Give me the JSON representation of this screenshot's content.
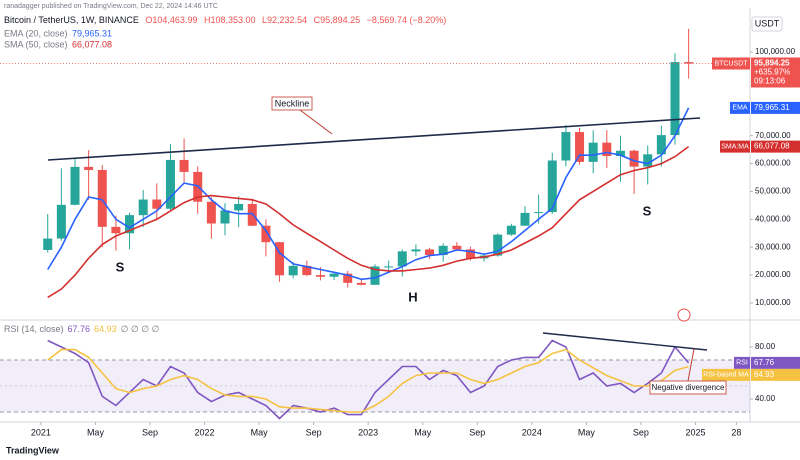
{
  "header": {
    "author_line": "ranadagger published on TradingView.com, Dec 22, 2024 14:46 UTC"
  },
  "footer": {
    "brand": "TradingView"
  },
  "chart_data": [
    {
      "type": "candlestick",
      "title": "Bitcoin / TetherUS, 1W, BINANCE",
      "ohlc_label": {
        "o": "O104,463.99",
        "h": "H108,353.00",
        "l": "L92,232.54",
        "c": "C95,894.25",
        "change": "−8,569.74 (−8.20%)"
      },
      "x": [
        "2021-01",
        "2021-02",
        "2021-03",
        "2021-04",
        "2021-05",
        "2021-06",
        "2021-07",
        "2021-08",
        "2021-09",
        "2021-10",
        "2021-11",
        "2021-12",
        "2022-01",
        "2022-02",
        "2022-03",
        "2022-04",
        "2022-05",
        "2022-06",
        "2022-07",
        "2022-08",
        "2022-09",
        "2022-10",
        "2022-11",
        "2022-12",
        "2023-01",
        "2023-02",
        "2023-03",
        "2023-04",
        "2023-05",
        "2023-06",
        "2023-07",
        "2023-08",
        "2023-09",
        "2023-10",
        "2023-11",
        "2023-12",
        "2024-01",
        "2024-02",
        "2024-03",
        "2024-04",
        "2024-05",
        "2024-06",
        "2024-07",
        "2024-08",
        "2024-09",
        "2024-10",
        "2024-11",
        "2024-12"
      ],
      "open": [
        29000,
        33100,
        45200,
        58800,
        57700,
        37300,
        35000,
        41500,
        47100,
        43800,
        61300,
        57000,
        46300,
        38500,
        43200,
        45500,
        37700,
        31800,
        19900,
        23300,
        20000,
        19400,
        20500,
        17200,
        16500,
        23100,
        23100,
        28500,
        29200,
        27200,
        30500,
        29200,
        26000,
        27000,
        34500,
        37700,
        42300,
        42600,
        61100,
        71300,
        60600,
        67500,
        62700,
        64600,
        58900,
        63300,
        70200,
        96400
      ],
      "high": [
        41900,
        58300,
        61700,
        64800,
        59500,
        41300,
        42400,
        50500,
        52900,
        67000,
        69000,
        59000,
        47900,
        45800,
        48200,
        47400,
        40000,
        31900,
        24700,
        25200,
        22800,
        21100,
        21500,
        18400,
        23900,
        25200,
        29200,
        31000,
        29800,
        31400,
        31800,
        30200,
        27500,
        35000,
        38400,
        44700,
        48900,
        63900,
        73800,
        72800,
        71900,
        72000,
        70000,
        65000,
        66500,
        73600,
        99600,
        108353
      ],
      "low": [
        28100,
        32300,
        45000,
        47000,
        30000,
        28800,
        29300,
        37300,
        39600,
        43300,
        53300,
        42000,
        33000,
        34300,
        37200,
        37600,
        26700,
        17600,
        18800,
        19600,
        18100,
        18200,
        15500,
        16300,
        16500,
        21400,
        19500,
        26900,
        25800,
        24800,
        28900,
        25200,
        24900,
        26600,
        34100,
        37600,
        38500,
        41900,
        59000,
        59600,
        56500,
        58400,
        53500,
        49100,
        52500,
        58900,
        66800,
        90500
      ],
      "close": [
        33100,
        45200,
        58800,
        57700,
        37300,
        35000,
        41500,
        47100,
        43800,
        61300,
        57000,
        46300,
        38500,
        43200,
        45500,
        37700,
        31800,
        19900,
        23300,
        20000,
        19400,
        20500,
        17200,
        16500,
        23100,
        23100,
        28500,
        29200,
        27200,
        30500,
        29200,
        26000,
        27000,
        34500,
        37700,
        42300,
        42600,
        61100,
        71300,
        60600,
        67500,
        62700,
        64600,
        58900,
        63300,
        70200,
        96400,
        95894.25
      ],
      "up_color": "#26a69a",
      "down_color": "#ef5350",
      "series": [
        {
          "name": "EMA (20, close)",
          "tag": "EMA",
          "last_label": "79,965.31",
          "color": "#2962ff",
          "values": [
            22000,
            30000,
            40000,
            48000,
            47000,
            40000,
            37000,
            40000,
            43000,
            48000,
            53000,
            52000,
            47000,
            43000,
            42000,
            42000,
            36000,
            28000,
            24000,
            23000,
            22000,
            21000,
            20000,
            18500,
            19000,
            21000,
            23000,
            25500,
            27000,
            27500,
            29000,
            28500,
            27500,
            28500,
            32000,
            36000,
            40000,
            44000,
            55000,
            63000,
            63000,
            64000,
            63000,
            61000,
            60000,
            63000,
            70000,
            79965.31
          ]
        },
        {
          "name": "SMA (50, close)",
          "tag": "SMA:MA",
          "last_label": "66,077.08",
          "color": "#d32f2f",
          "values": [
            12000,
            15000,
            20000,
            26000,
            31000,
            34000,
            36000,
            38000,
            40000,
            43000,
            46000,
            48000,
            48500,
            48000,
            47500,
            47000,
            45500,
            42000,
            38000,
            35000,
            32000,
            29000,
            26000,
            23500,
            22000,
            21500,
            21500,
            22000,
            22500,
            23500,
            25000,
            26000,
            26500,
            27500,
            29000,
            31500,
            34000,
            37000,
            42000,
            47000,
            50000,
            53000,
            56000,
            57500,
            58500,
            60000,
            62500,
            66077.08
          ]
        }
      ],
      "ylim": [
        4600,
        115800
      ],
      "yticks": [
        {
          "value": 10000,
          "label": "10,000.00"
        },
        {
          "value": 20000,
          "label": "20,000.00"
        },
        {
          "value": 30000,
          "label": "30,000.00"
        },
        {
          "value": 40000,
          "label": "40,000.00"
        },
        {
          "value": 50000,
          "label": "50,000.00"
        },
        {
          "value": 60000,
          "label": "60,000.00"
        },
        {
          "value": 70000,
          "label": "70,000.00"
        },
        {
          "value": 100000,
          "label": "100,000.00"
        }
      ],
      "y_unit": "USDT",
      "xlim": [
        "2020-10",
        "2025-05"
      ],
      "xticks": [
        {
          "value": "2021-01",
          "label": "2021"
        },
        {
          "value": "2021-05",
          "label": "May"
        },
        {
          "value": "2021-09",
          "label": "Sep"
        },
        {
          "value": "2022-01",
          "label": "2022"
        },
        {
          "value": "2022-05",
          "label": "May"
        },
        {
          "value": "2022-09",
          "label": "Sep"
        },
        {
          "value": "2023-01",
          "label": "2023"
        },
        {
          "value": "2023-05",
          "label": "May"
        },
        {
          "value": "2023-09",
          "label": "Sep"
        },
        {
          "value": "2024-01",
          "label": "2024"
        },
        {
          "value": "2024-05",
          "label": "May"
        },
        {
          "value": "2024-09",
          "label": "Sep"
        },
        {
          "value": "2025-01",
          "label": "2025"
        },
        {
          "value": "2025-04",
          "label": "28"
        }
      ],
      "price_tag": {
        "symbol": "BTCUSDT",
        "price": "95,894.25",
        "change": "+635.97%",
        "countdown": "09:13:06"
      },
      "annotations": [
        "Neckline",
        "S",
        "H",
        "S"
      ],
      "grid": false
    },
    {
      "type": "line",
      "title": "RSI (14, close)",
      "legend_suffix": "∅ ∅ ∅ ∅",
      "x": [
        "2021-01",
        "2021-02",
        "2021-03",
        "2021-04",
        "2021-05",
        "2021-06",
        "2021-07",
        "2021-08",
        "2021-09",
        "2021-10",
        "2021-11",
        "2021-12",
        "2022-01",
        "2022-02",
        "2022-03",
        "2022-04",
        "2022-05",
        "2022-06",
        "2022-07",
        "2022-08",
        "2022-09",
        "2022-10",
        "2022-11",
        "2022-12",
        "2023-01",
        "2023-02",
        "2023-03",
        "2023-04",
        "2023-05",
        "2023-06",
        "2023-07",
        "2023-08",
        "2023-09",
        "2023-10",
        "2023-11",
        "2023-12",
        "2024-01",
        "2024-02",
        "2024-03",
        "2024-04",
        "2024-05",
        "2024-06",
        "2024-07",
        "2024-08",
        "2024-09",
        "2024-10",
        "2024-11",
        "2024-12"
      ],
      "series": [
        {
          "name": "RSI",
          "last_label": "67.76",
          "color": "#7e57c2",
          "values": [
            85,
            80,
            75,
            68,
            42,
            35,
            45,
            55,
            50,
            65,
            60,
            45,
            38,
            43,
            45,
            40,
            35,
            25,
            35,
            33,
            30,
            33,
            28,
            28,
            45,
            55,
            65,
            65,
            55,
            62,
            58,
            45,
            50,
            65,
            70,
            72,
            72,
            85,
            80,
            55,
            60,
            50,
            52,
            45,
            52,
            60,
            80,
            67.76
          ]
        },
        {
          "name": "RSI-based MA",
          "last_label": "64.93",
          "color": "#f5c242",
          "values": [
            70,
            78,
            78,
            72,
            60,
            48,
            45,
            48,
            50,
            55,
            58,
            55,
            48,
            43,
            42,
            42,
            40,
            34,
            33,
            33,
            32,
            31,
            30,
            30,
            35,
            42,
            52,
            58,
            60,
            60,
            60,
            55,
            52,
            55,
            60,
            65,
            68,
            75,
            78,
            70,
            64,
            58,
            54,
            50,
            50,
            54,
            62,
            64.93
          ]
        }
      ],
      "ylim": [
        22.3,
        99.2
      ],
      "yticks": [
        {
          "value": 80,
          "label": "80.00"
        },
        {
          "value": 40,
          "label": "40.00"
        }
      ],
      "bands": [
        30,
        70
      ],
      "midline": 50,
      "annotations": [
        "Negative divergence"
      ]
    }
  ]
}
